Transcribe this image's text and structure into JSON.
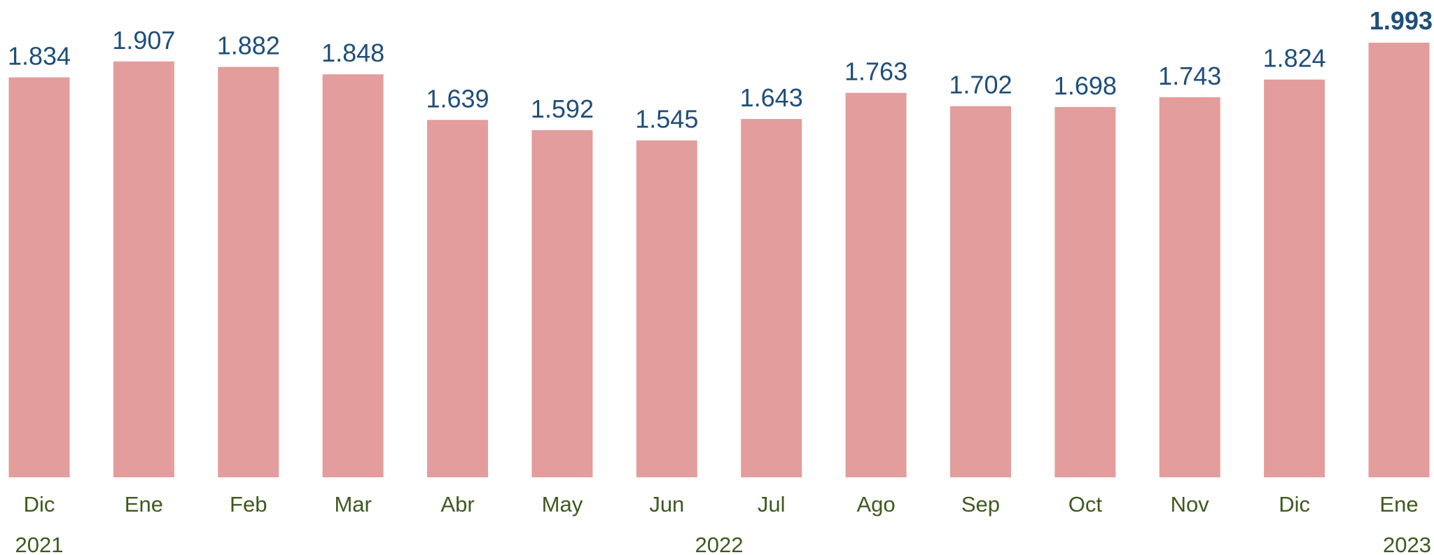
{
  "chart_data": {
    "type": "bar",
    "categories": [
      "Dic",
      "Ene",
      "Feb",
      "Mar",
      "Abr",
      "May",
      "Jun",
      "Jul",
      "Ago",
      "Sep",
      "Oct",
      "Nov",
      "Dic",
      "Ene"
    ],
    "years": [
      "2021",
      "2022",
      "2022",
      "2022",
      "2022",
      "2022",
      "2022",
      "2022",
      "2022",
      "2022",
      "2022",
      "2022",
      "2022",
      "2023"
    ],
    "values": [
      1834,
      1907,
      1882,
      1848,
      1639,
      1592,
      1545,
      1643,
      1763,
      1702,
      1698,
      1743,
      1824,
      1993
    ],
    "value_labels": [
      "1.834",
      "1.907",
      "1.882",
      "1.848",
      "1.639",
      "1.592",
      "1.545",
      "1.643",
      "1.763",
      "1.702",
      "1.698",
      "1.743",
      "1.824",
      "1.993"
    ],
    "color": "#e39d9c",
    "highlight_index": 13
  }
}
